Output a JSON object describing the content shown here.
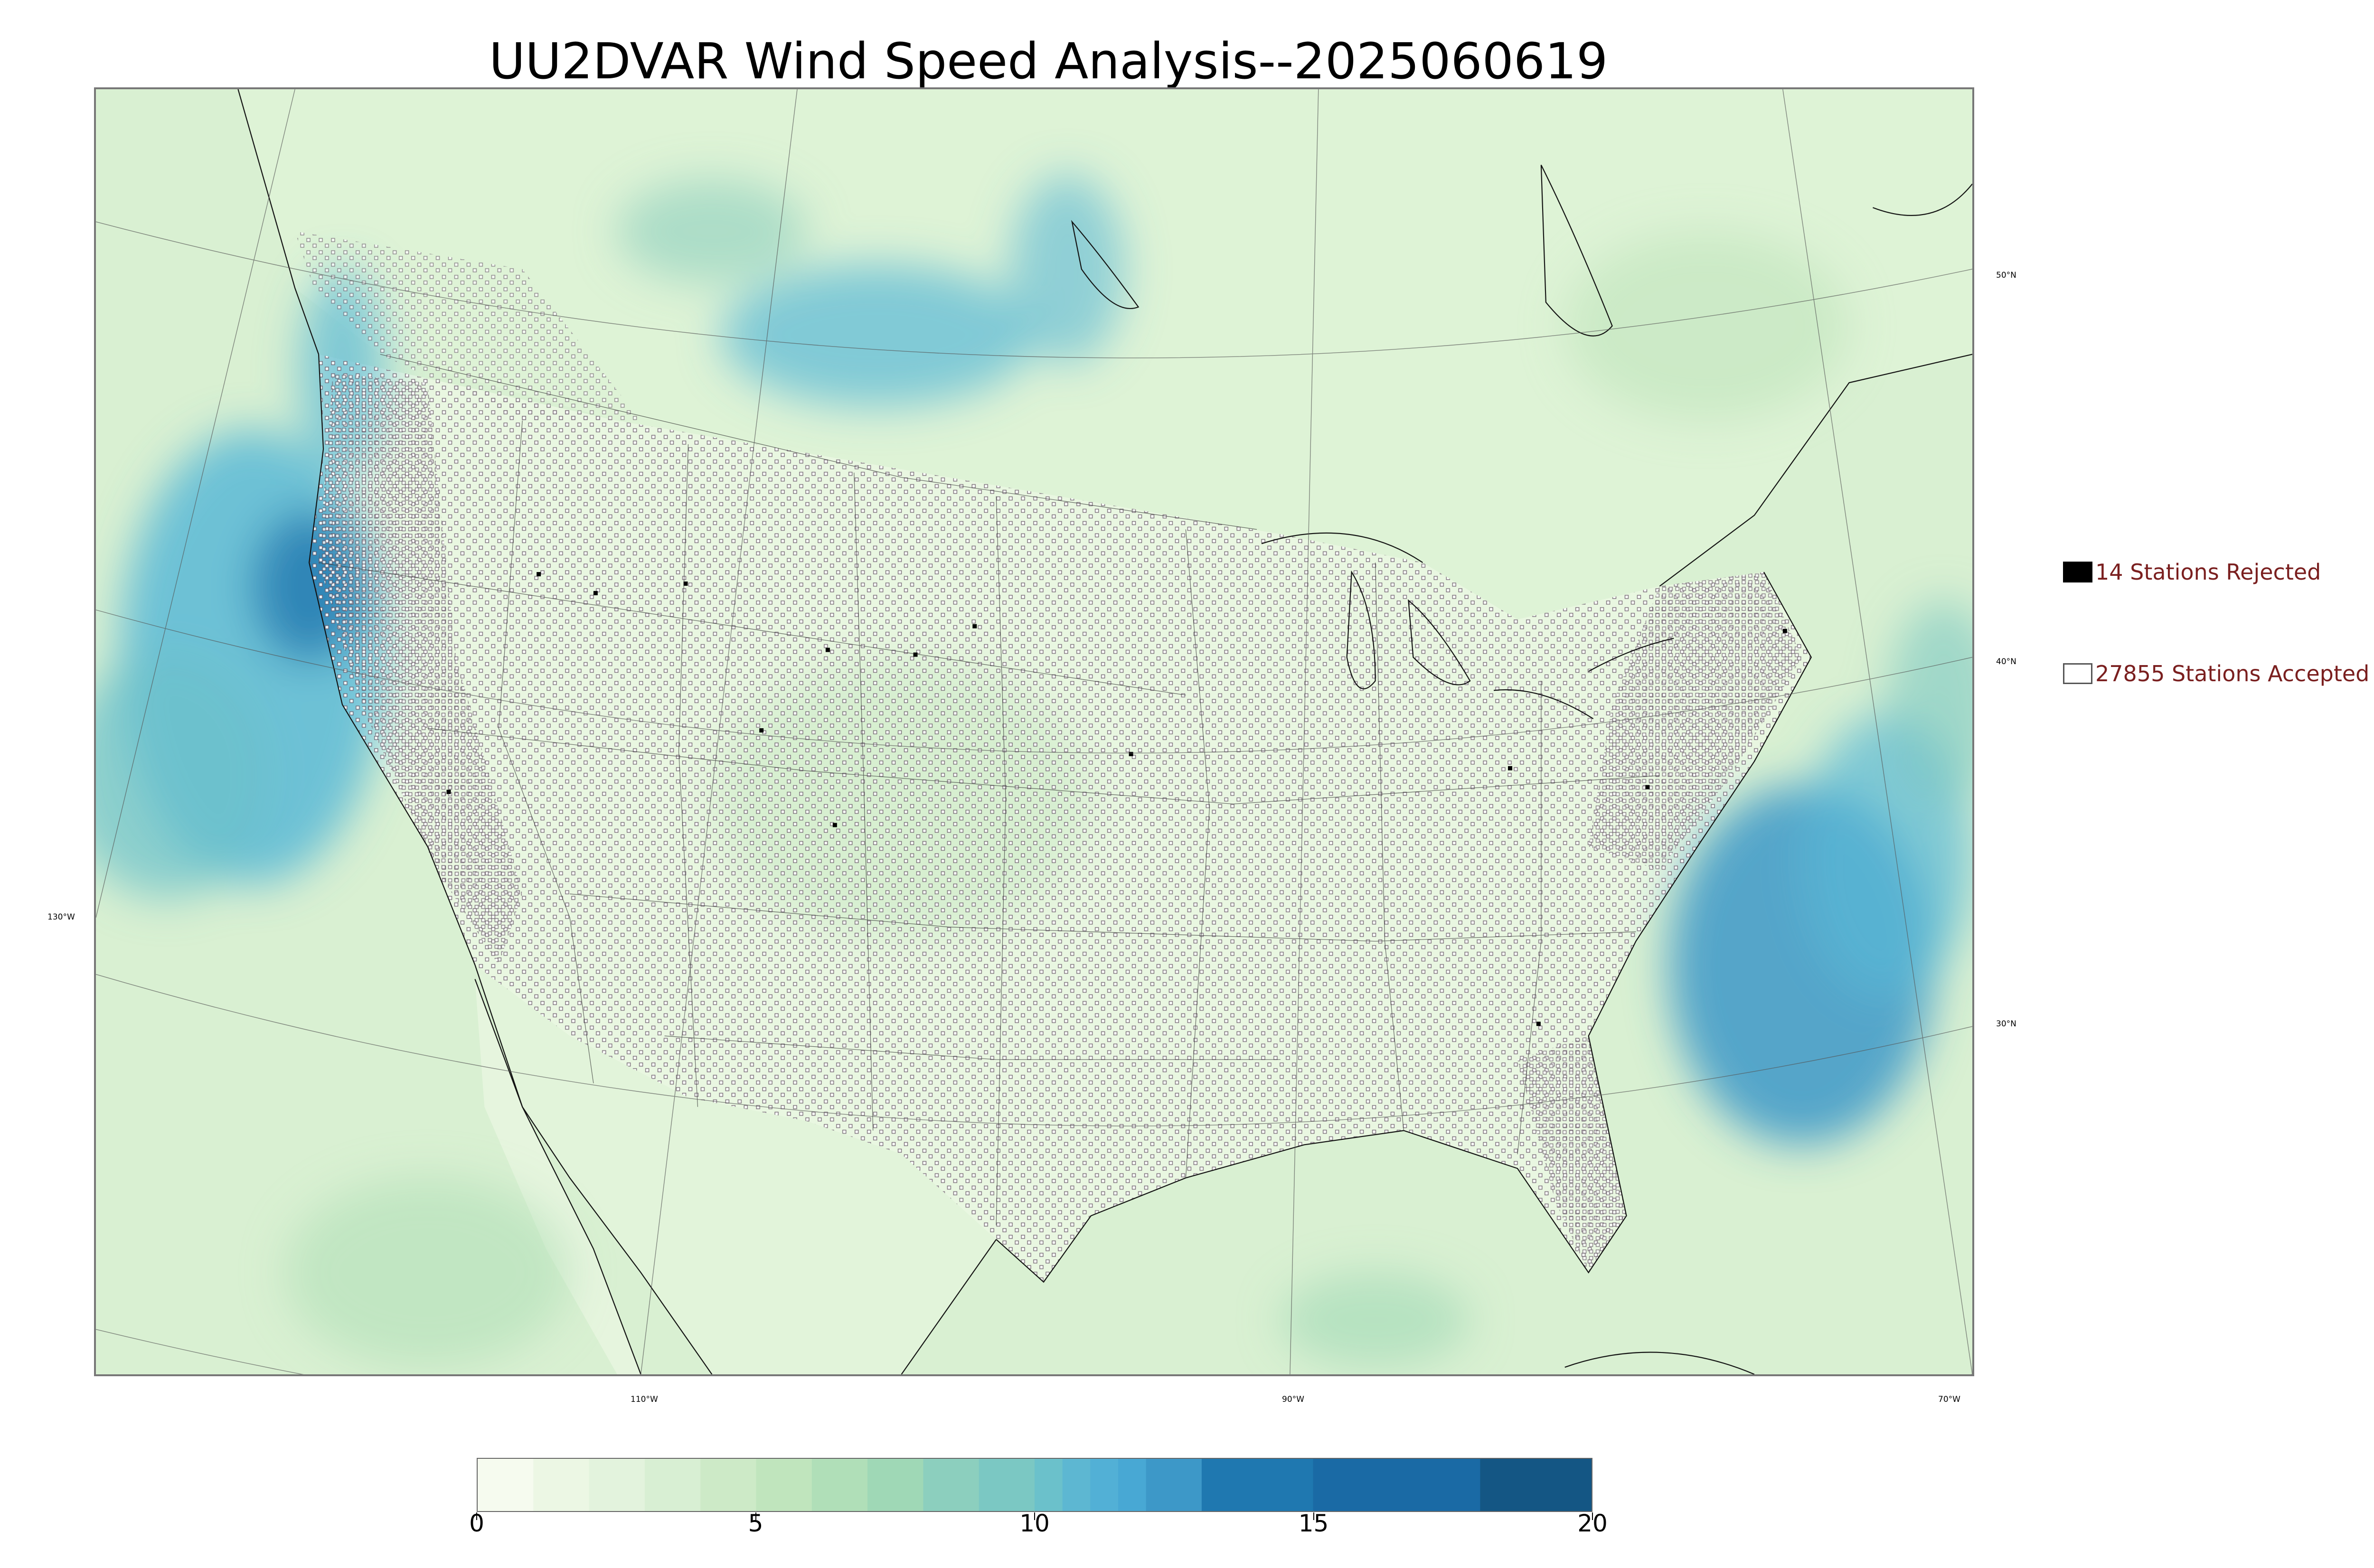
{
  "title": "UU2DVAR Wind Speed Analysis--2025060619",
  "legend": {
    "rejected": {
      "label": "14 Stations Rejected",
      "color": "#000000"
    },
    "accepted": {
      "label": "27855 Stations Accepted",
      "color": "#ffffff"
    }
  },
  "graticule": {
    "lat_labels": [
      "50°N",
      "40°N",
      "30°N"
    ],
    "lon_labels": [
      "130°W",
      "110°W",
      "90°W",
      "70°W"
    ]
  },
  "colorbar": {
    "ticks": [
      "0",
      "5",
      "10",
      "15",
      "20"
    ],
    "min": 0,
    "max": 20,
    "bounds": [
      0,
      1,
      2,
      3,
      4,
      5,
      6,
      7,
      8,
      9,
      10,
      10.5,
      11,
      11.5,
      12,
      13,
      15,
      18,
      20
    ],
    "colors": [
      "#f6fbef",
      "#ecf7e4",
      "#e3f3dd",
      "#d8efd3",
      "#cdeac7",
      "#c0e5bd",
      "#b0dfb8",
      "#9fd8b6",
      "#8ccfbe",
      "#7bc8c3",
      "#6bc1cb",
      "#5db7d2",
      "#52b0d6",
      "#48a8d4",
      "#3d98c8",
      "#1f78b0",
      "#1a6aa5",
      "#145684"
    ]
  },
  "map": {
    "ocean_color": "#d5efcf",
    "land_color": "#e6f6df",
    "strong_wind_color": "#3b9bd0"
  }
}
